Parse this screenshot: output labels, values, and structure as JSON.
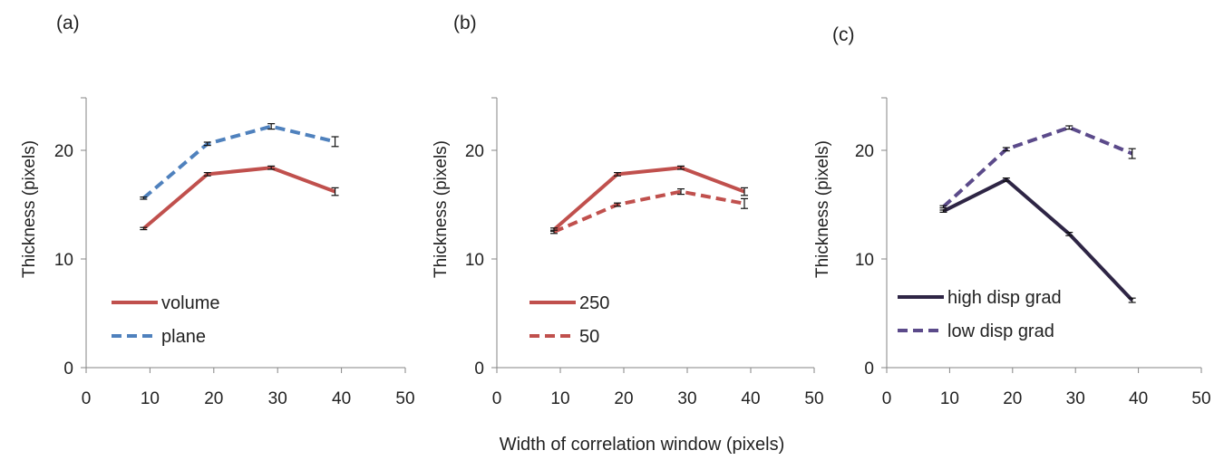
{
  "shared_xlabel": "Width of correlation window (pixels)",
  "chart_data": [
    {
      "type": "line",
      "panel_label": "(a)",
      "ylabel": "Thickness (pixels)",
      "x_ticks": [
        0,
        10,
        20,
        30,
        40,
        50
      ],
      "y_ticks": [
        0,
        10,
        20
      ],
      "xlim": [
        0,
        50
      ],
      "ylim": [
        0,
        25
      ],
      "legend_position": "bottom-left",
      "series": [
        {
          "name": "volume",
          "color": "#c0504d",
          "dash": "solid",
          "x": [
            9,
            19,
            29,
            39
          ],
          "y": [
            12.8,
            17.8,
            18.4,
            16.2
          ],
          "err": [
            0.1,
            0.15,
            0.15,
            0.35
          ]
        },
        {
          "name": "plane",
          "color": "#4f81bd",
          "dash": "dashed",
          "x": [
            9,
            19,
            29,
            39
          ],
          "y": [
            15.6,
            20.6,
            22.2,
            20.8
          ],
          "err": [
            0.1,
            0.15,
            0.25,
            0.45
          ]
        }
      ]
    },
    {
      "type": "line",
      "panel_label": "(b)",
      "ylabel": "Thickness (pixels)",
      "x_ticks": [
        0,
        10,
        20,
        30,
        40,
        50
      ],
      "y_ticks": [
        0,
        10,
        20
      ],
      "xlim": [
        0,
        50
      ],
      "ylim": [
        0,
        25
      ],
      "legend_position": "bottom-left",
      "series": [
        {
          "name": "250",
          "color": "#c0504d",
          "dash": "solid",
          "x": [
            9,
            19,
            29,
            39
          ],
          "y": [
            12.7,
            17.8,
            18.4,
            16.2
          ],
          "err": [
            0.15,
            0.15,
            0.15,
            0.35
          ]
        },
        {
          "name": "50",
          "color": "#c0504d",
          "dash": "dashed",
          "x": [
            9,
            19,
            29,
            39
          ],
          "y": [
            12.5,
            15.0,
            16.2,
            15.1
          ],
          "err": [
            0.15,
            0.15,
            0.25,
            0.45
          ]
        }
      ]
    },
    {
      "type": "line",
      "panel_label": "(c)",
      "ylabel": "Thickness (pixels)",
      "x_ticks": [
        0,
        10,
        20,
        30,
        40,
        50
      ],
      "y_ticks": [
        0,
        10,
        20
      ],
      "xlim": [
        0,
        50
      ],
      "ylim": [
        0,
        25
      ],
      "legend_position": "bottom-left",
      "series": [
        {
          "name": "high disp grad",
          "color": "#2e2545",
          "dash": "solid",
          "x": [
            9,
            19,
            29,
            39
          ],
          "y": [
            14.4,
            17.3,
            12.3,
            6.2
          ],
          "err": [
            0.1,
            0.15,
            0.15,
            0.2
          ]
        },
        {
          "name": "low disp grad",
          "color": "#5b4a8a",
          "dash": "dashed",
          "x": [
            9,
            19,
            29,
            39
          ],
          "y": [
            14.8,
            20.1,
            22.1,
            19.7
          ],
          "err": [
            0.1,
            0.15,
            0.15,
            0.45
          ]
        }
      ]
    }
  ]
}
